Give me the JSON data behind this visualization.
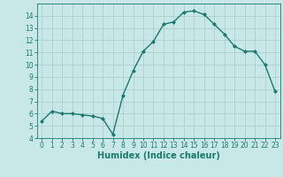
{
  "xlabel": "Humidex (Indice chaleur)",
  "ylabel": "",
  "x": [
    0,
    1,
    2,
    3,
    4,
    5,
    6,
    7,
    8,
    9,
    10,
    11,
    12,
    13,
    14,
    15,
    16,
    17,
    18,
    19,
    20,
    21,
    22,
    23
  ],
  "y": [
    5.4,
    6.2,
    6.0,
    6.0,
    5.9,
    5.8,
    5.6,
    4.3,
    7.5,
    9.5,
    11.1,
    11.9,
    13.3,
    13.5,
    14.3,
    14.4,
    14.1,
    13.3,
    12.5,
    11.5,
    11.1,
    11.1,
    10.0,
    7.8
  ],
  "line_color": "#1a7a6e",
  "marker": "D",
  "marker_size": 2.0,
  "bg_color": "#c8e8e8",
  "grid_color": "#b0d0d0",
  "ylim": [
    4,
    15
  ],
  "xlim": [
    -0.5,
    23.5
  ],
  "yticks": [
    4,
    5,
    6,
    7,
    8,
    9,
    10,
    11,
    12,
    13,
    14
  ],
  "xticks": [
    0,
    1,
    2,
    3,
    4,
    5,
    6,
    7,
    8,
    9,
    10,
    11,
    12,
    13,
    14,
    15,
    16,
    17,
    18,
    19,
    20,
    21,
    22,
    23
  ],
  "tick_label_fontsize": 5.5,
  "xlabel_fontsize": 7.0,
  "line_width": 1.0
}
